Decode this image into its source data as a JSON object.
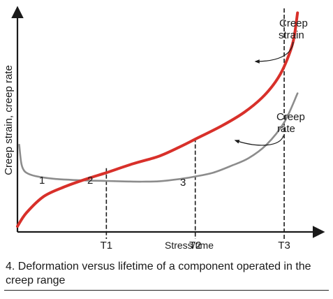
{
  "chart_data": {
    "type": "line",
    "title": "",
    "xlabel": "Stress/time",
    "ylabel": "Creep strain, creep rate",
    "x_ticks": [
      "T1",
      "T2",
      "T3"
    ],
    "x_tick_values": [
      1,
      2,
      3
    ],
    "xlim": [
      0,
      3.4
    ],
    "ylim": [
      0,
      10
    ],
    "grid": false,
    "legend": "none",
    "series": [
      {
        "name": "Creep strain",
        "color": "#d8302a",
        "x": [
          0,
          0.1,
          0.3,
          0.55,
          0.8,
          1.0,
          1.3,
          1.6,
          1.85,
          2.0,
          2.3,
          2.55,
          2.75,
          2.9,
          3.0,
          3.1,
          3.15
        ],
        "y": [
          0.25,
          0.85,
          1.6,
          2.05,
          2.4,
          2.65,
          3.05,
          3.4,
          3.85,
          4.15,
          4.75,
          5.35,
          6.0,
          6.7,
          7.4,
          8.5,
          9.8
        ]
      },
      {
        "name": "Creep rate",
        "color": "#8c8c8c",
        "x": [
          0.02,
          0.04,
          0.06,
          0.1,
          0.2,
          0.4,
          0.6,
          0.8,
          1.0,
          1.2,
          1.4,
          1.6,
          1.85,
          2.0,
          2.2,
          2.4,
          2.6,
          2.8,
          3.0,
          3.15
        ],
        "y": [
          3.9,
          3.15,
          2.85,
          2.65,
          2.5,
          2.38,
          2.33,
          2.3,
          2.28,
          2.26,
          2.25,
          2.27,
          2.38,
          2.48,
          2.65,
          2.95,
          3.3,
          3.9,
          4.9,
          6.2
        ]
      }
    ],
    "stage_labels": [
      "1",
      "2",
      "3"
    ],
    "annotations": [
      {
        "text": "Creep strain",
        "lines": [
          "Creep",
          "strain"
        ]
      },
      {
        "text": "Creep rate",
        "lines": [
          "Creep",
          "rate"
        ]
      }
    ]
  },
  "caption": "4. Deformation versus lifetime of a component operated in the creep range",
  "colors": {
    "strain": "#d8302a",
    "rate": "#8c8c8c",
    "axis": "#1a1a1a"
  }
}
